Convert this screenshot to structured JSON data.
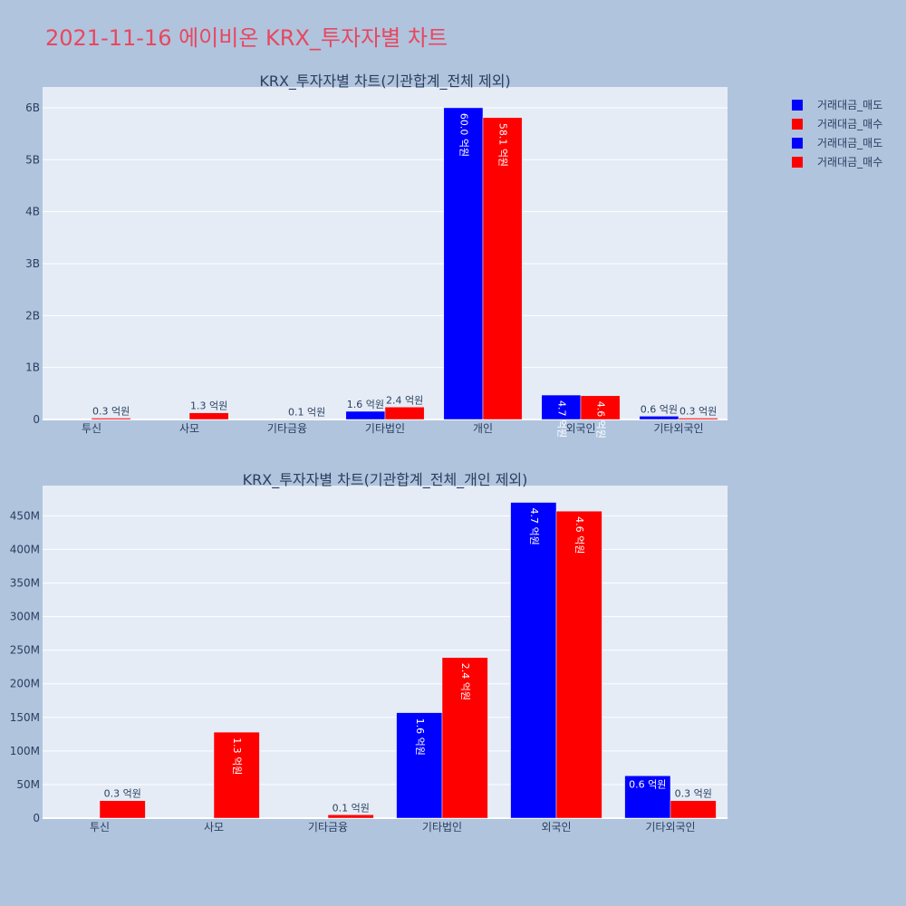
{
  "title": "2021-11-16 에이비온 KRX_투자자별 차트",
  "legend": [
    {
      "label": "거래대금_매도",
      "color": "#0000ff"
    },
    {
      "label": "거래대금_매수",
      "color": "#ff0000"
    },
    {
      "label": "거래대금_매도",
      "color": "#0000ff"
    },
    {
      "label": "거래대금_매수",
      "color": "#ff0000"
    }
  ],
  "chart_data": [
    {
      "type": "bar",
      "title": "KRX_투자자별 차트(기관합계_전체 제외)",
      "categories": [
        "투신",
        "사모",
        "기타금융",
        "기타법인",
        "개인",
        "외국인",
        "기타외국인"
      ],
      "ylim": [
        0,
        6400000000
      ],
      "yticks": [
        0,
        1000000000,
        2000000000,
        3000000000,
        4000000000,
        5000000000,
        6000000000
      ],
      "ytick_labels": [
        "0",
        "1B",
        "2B",
        "3B",
        "4B",
        "5B",
        "6B"
      ],
      "grid": true,
      "series": [
        {
          "name": "거래대금_매도",
          "color": "#0000ff",
          "values": [
            0,
            0,
            0,
            157000000,
            6000000000,
            470000000,
            63000000
          ],
          "labels": [
            "",
            "",
            "",
            "1.6 억원",
            "60.0 억원",
            "4.7 억원",
            "0.6 억원"
          ]
        },
        {
          "name": "거래대금_매수",
          "color": "#ff0000",
          "values": [
            26000000,
            128000000,
            5000000,
            239000000,
            5810000000,
            457000000,
            26000000
          ],
          "labels": [
            "0.3 억원",
            "1.3 억원",
            "0.1 억원",
            "2.4 억원",
            "58.1 억원",
            "4.6 억원",
            "0.3 억원"
          ]
        }
      ]
    },
    {
      "type": "bar",
      "title": "KRX_투자자별 차트(기관합계_전체_개인 제외)",
      "categories": [
        "투신",
        "사모",
        "기타금융",
        "기타법인",
        "외국인",
        "기타외국인"
      ],
      "ylim": [
        0,
        495000000
      ],
      "yticks": [
        0,
        50000000,
        100000000,
        150000000,
        200000000,
        250000000,
        300000000,
        350000000,
        400000000,
        450000000
      ],
      "ytick_labels": [
        "0",
        "50M",
        "100M",
        "150M",
        "200M",
        "250M",
        "300M",
        "350M",
        "400M",
        "450M"
      ],
      "grid": true,
      "series": [
        {
          "name": "거래대금_매도",
          "color": "#0000ff",
          "values": [
            0,
            0,
            0,
            157000000,
            470000000,
            63000000
          ],
          "labels": [
            "",
            "",
            "",
            "1.6 억원",
            "4.7 억원",
            "0.6 억원"
          ]
        },
        {
          "name": "거래대금_매수",
          "color": "#ff0000",
          "values": [
            26000000,
            128000000,
            5000000,
            239000000,
            457000000,
            26000000
          ],
          "labels": [
            "0.3 억원",
            "1.3 억원",
            "0.1 억원",
            "2.4 억원",
            "4.6 억원",
            "0.3 억원"
          ]
        }
      ]
    }
  ]
}
